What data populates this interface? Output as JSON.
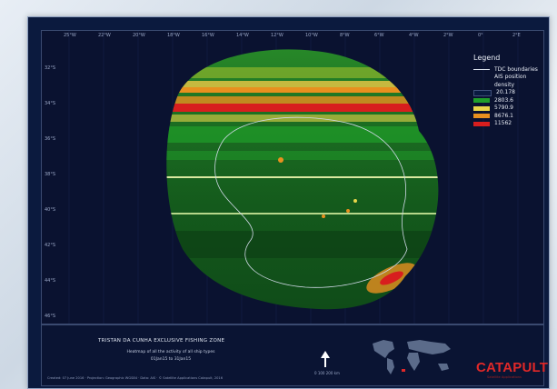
{
  "map": {
    "legend": {
      "title": "Legend",
      "boundaries_label": "TDC boundaries",
      "density_label": "AIS position density",
      "classes": [
        {
          "label": "20.178",
          "color": "#0a1a40"
        },
        {
          "label": "2803.6",
          "color": "#1f9e2a"
        },
        {
          "label": "5790.9",
          "color": "#e8d64a"
        },
        {
          "label": "8676.1",
          "color": "#e8901f"
        },
        {
          "label": "11562",
          "color": "#d81e1e"
        }
      ]
    },
    "lon_ticks": [
      "25°W",
      "22°W",
      "20°W",
      "18°W",
      "16°W",
      "14°W",
      "12°W",
      "10°W",
      "8°W",
      "6°W",
      "4°W",
      "2°W",
      "0°",
      "2°E"
    ],
    "lat_ticks": [
      "32°S",
      "34°S",
      "36°S",
      "38°S",
      "40°S",
      "42°S",
      "44°S",
      "46°S"
    ]
  },
  "footer": {
    "title": "TRISTAN DA CUNHA EXCLUSIVE FISHING ZONE",
    "subtitle_1": "Heatmap of all the activity of all ship types",
    "subtitle_2": "01Jan15 to 31Jan15",
    "credit": "Created: 07 June 2016 · Projection: Geographic WGS84 · Data: AIS · © Satellite Applications Catapult, 2016",
    "scale_label": "0 100   200 km",
    "logo_text": "CATAPULT",
    "logo_sub": "Satellite Applications"
  }
}
